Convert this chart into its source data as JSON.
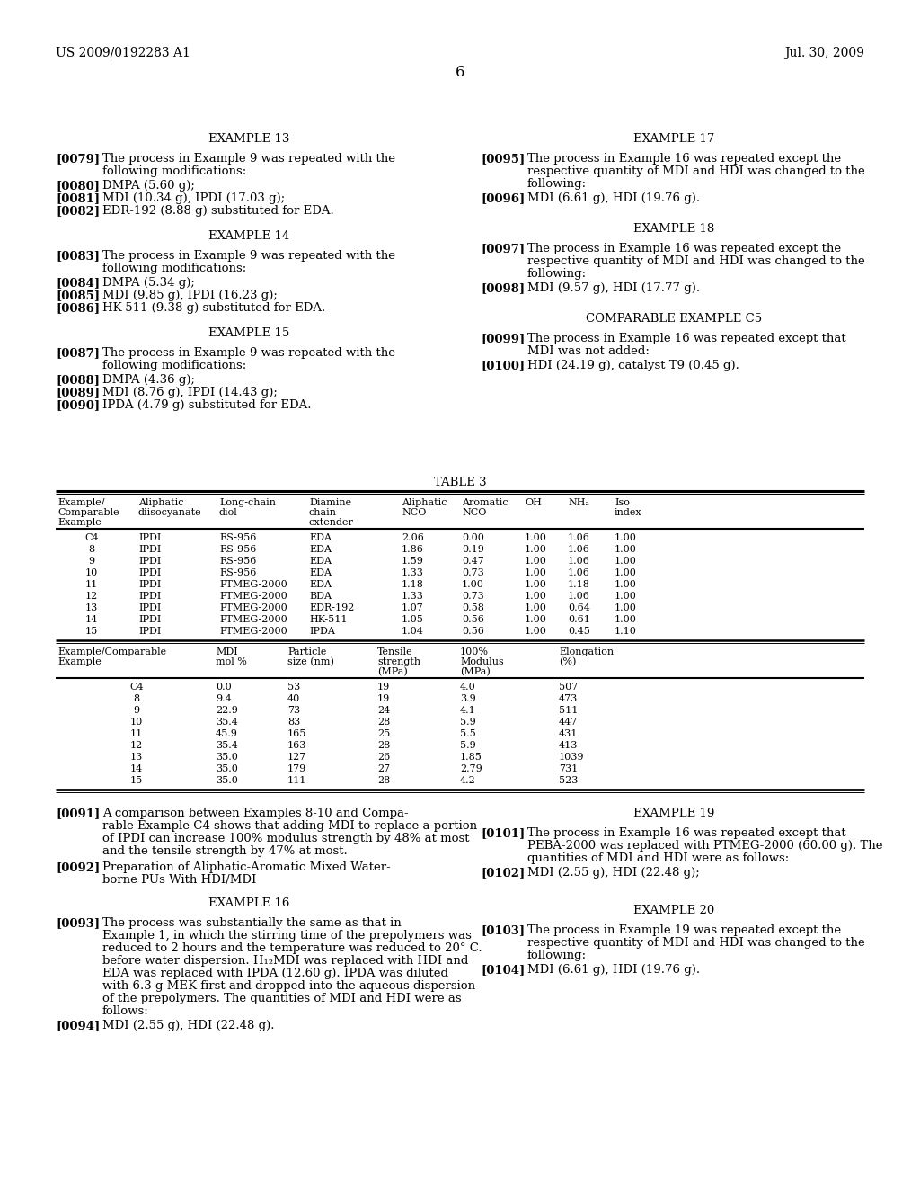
{
  "header_left": "US 2009/0192283 A1",
  "header_right": "Jul. 30, 2009",
  "page_num": "6",
  "background": "#ffffff"
}
